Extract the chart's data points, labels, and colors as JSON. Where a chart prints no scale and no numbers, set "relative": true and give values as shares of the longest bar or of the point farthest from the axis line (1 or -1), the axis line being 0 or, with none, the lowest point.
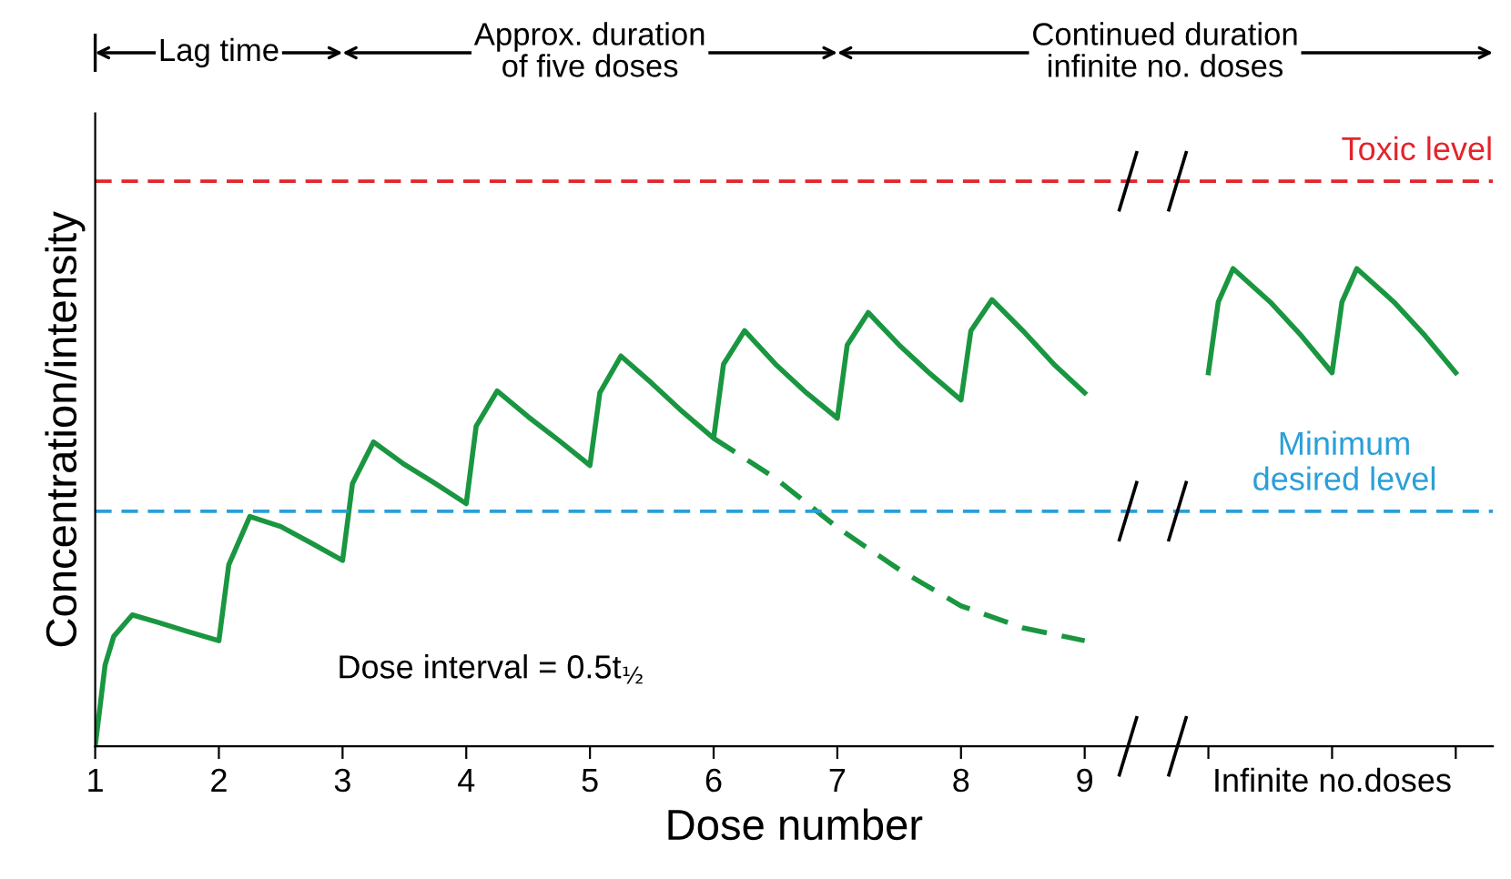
{
  "chart_data": {
    "type": "line",
    "relative": true,
    "xlabel": "Dose number",
    "ylabel": "Concentration/intensity",
    "xlim": [
      1,
      12.3
    ],
    "xticks": [
      1,
      2,
      3,
      4,
      5,
      6,
      7,
      8,
      9,
      {
        "value": 10,
        "label": null
      },
      {
        "value": 11,
        "label": "Infinite no.doses"
      },
      {
        "value": 12,
        "label": null
      }
    ],
    "grid": false,
    "marker": "none",
    "series": [
      {
        "color": "#1a9641",
        "line_style": "solid",
        "x": [
          1,
          1.08,
          1.15,
          1.3,
          1.5,
          1.75,
          2,
          2.08,
          2.25,
          2.5,
          2.75,
          3,
          3.08,
          3.25,
          3.5,
          3.75,
          4,
          4.08,
          4.25,
          4.5,
          4.75,
          5,
          5.08,
          5.25,
          5.5,
          5.75,
          6,
          6.08,
          6.25,
          6.5,
          6.75,
          7,
          7.08,
          7.25,
          7.5,
          7.75,
          8,
          8.08,
          8.25,
          8.5,
          8.75,
          9,
          9.5,
          10,
          10.08,
          10.2,
          10.5,
          10.75,
          11,
          11.08,
          11.2,
          11.5,
          11.75,
          12
        ],
        "values": [
          0,
          0.17,
          0.23,
          0.275,
          0.26,
          0.24,
          0.221,
          0.38,
          0.481,
          0.46,
          0.425,
          0.389,
          0.55,
          0.637,
          0.59,
          0.55,
          0.508,
          0.67,
          0.744,
          0.69,
          0.64,
          0.588,
          0.74,
          0.817,
          0.76,
          0.7,
          0.645,
          0.8,
          0.87,
          0.8,
          0.74,
          0.687,
          0.84,
          0.908,
          0.84,
          0.78,
          0.725,
          0.87,
          0.935,
          0.87,
          0.8,
          0.74,
          null,
          0.782,
          0.93,
          1.0,
          0.93,
          0.86,
          0.782,
          0.93,
          1.0,
          0.93,
          0.86,
          0.782
        ]
      },
      {
        "color": "#1a9641",
        "line_style": "dashed",
        "x": [
          6,
          6.5,
          7,
          7.5,
          8,
          8.5,
          9
        ],
        "values": [
          0.645,
          0.561,
          0.458,
          0.37,
          0.294,
          0.248,
          0.221
        ]
      }
    ],
    "ref_lines": [
      {
        "axis": "y",
        "value": 1.183,
        "label": "Toxic level",
        "color": "#e3242b",
        "line_style": "dashed"
      },
      {
        "axis": "y",
        "value": 0.492,
        "label": "Minimum\ndesired level",
        "color": "#2a9fd8",
        "line_style": "dashed"
      }
    ],
    "annotations": [
      "Lag time",
      "Approx. duration\nof five doses",
      "Continued duration\ninfinite no. doses",
      "Dose interval = 0.5t$_{½}$"
    ]
  }
}
